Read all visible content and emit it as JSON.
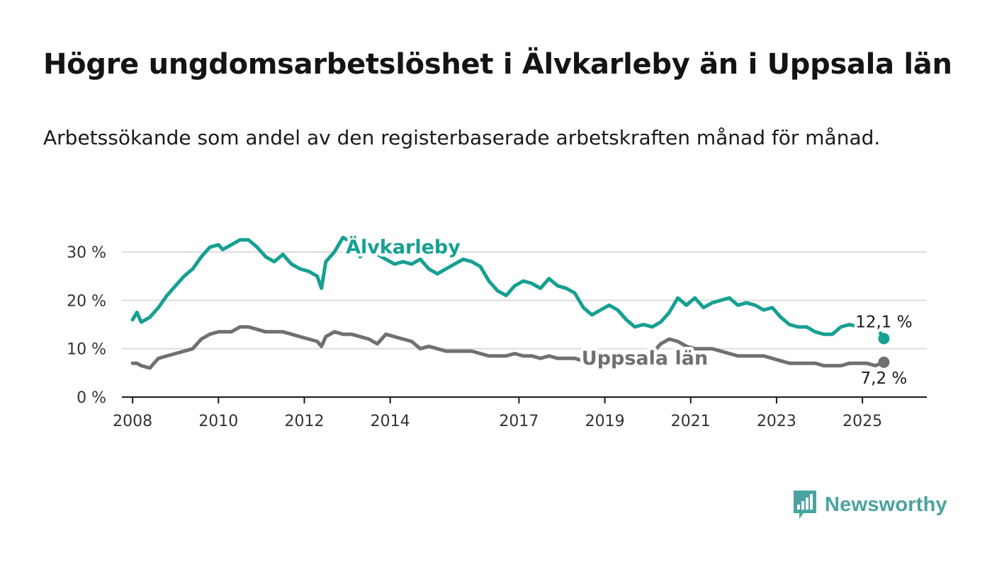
{
  "header": {
    "title": "Högre ungdomsarbetslöshet i Älvkarleby än i Uppsala län",
    "subtitle": "Arbetssökande som andel av den registerbaserade arbetskraften månad för månad."
  },
  "logo": {
    "text": "Newsworthy",
    "icon": "newsworthy-logo-icon",
    "color": "#4aa3a0"
  },
  "chart_data": {
    "type": "line",
    "title": "",
    "xlabel": "",
    "ylabel": "",
    "xlim": [
      2007.75,
      2026.5
    ],
    "ylim": [
      0,
      30
    ],
    "y_ticks": [
      0,
      10,
      20,
      30
    ],
    "y_tick_labels": [
      "0 %",
      "10 %",
      "20 %",
      "30 %"
    ],
    "x_ticks": [
      2008,
      2010,
      2012,
      2014,
      2017,
      2019,
      2021,
      2023,
      2025
    ],
    "x_tick_labels": [
      "2008",
      "2010",
      "2012",
      "2014",
      "2017",
      "2019",
      "2021",
      "2023",
      "2025"
    ],
    "grid": true,
    "series": [
      {
        "name": "Älvkarleby",
        "color": "#16a092",
        "end_label": "12,1 %",
        "x": [
          2008.0,
          2008.1,
          2008.2,
          2008.4,
          2008.6,
          2008.8,
          2009.0,
          2009.2,
          2009.4,
          2009.6,
          2009.8,
          2010.0,
          2010.1,
          2010.3,
          2010.5,
          2010.7,
          2010.9,
          2011.1,
          2011.3,
          2011.5,
          2011.7,
          2011.9,
          2012.1,
          2012.3,
          2012.4,
          2012.5,
          2012.7,
          2012.9,
          2013.1,
          2013.3,
          2013.5,
          2013.7,
          2013.9,
          2014.1,
          2014.3,
          2014.5,
          2014.7,
          2014.9,
          2015.1,
          2015.3,
          2015.5,
          2015.7,
          2015.9,
          2016.1,
          2016.3,
          2016.5,
          2016.7,
          2016.9,
          2017.1,
          2017.3,
          2017.5,
          2017.7,
          2017.9,
          2018.1,
          2018.3,
          2018.5,
          2018.7,
          2018.9,
          2019.1,
          2019.3,
          2019.5,
          2019.7,
          2019.9,
          2020.1,
          2020.3,
          2020.5,
          2020.7,
          2020.9,
          2021.1,
          2021.3,
          2021.5,
          2021.7,
          2021.9,
          2022.1,
          2022.3,
          2022.5,
          2022.7,
          2022.9,
          2023.1,
          2023.3,
          2023.5,
          2023.7,
          2023.9,
          2024.1,
          2024.3,
          2024.5,
          2024.7,
          2024.9,
          2025.1,
          2025.3,
          2025.5
        ],
        "y": [
          16.0,
          17.5,
          15.5,
          16.5,
          18.5,
          21.0,
          23.0,
          25.0,
          26.5,
          29.0,
          31.0,
          31.5,
          30.5,
          31.5,
          32.5,
          32.5,
          31.0,
          29.0,
          28.0,
          29.5,
          27.5,
          26.5,
          26.0,
          25.0,
          22.5,
          28.0,
          30.0,
          33.0,
          32.0,
          29.0,
          31.0,
          29.5,
          28.5,
          27.5,
          28.0,
          27.5,
          28.5,
          26.5,
          25.5,
          26.5,
          27.5,
          28.5,
          28.0,
          27.0,
          24.0,
          22.0,
          21.0,
          23.0,
          24.0,
          23.5,
          22.5,
          24.5,
          23.0,
          22.5,
          21.5,
          18.5,
          17.0,
          18.0,
          19.0,
          18.0,
          16.0,
          14.5,
          15.0,
          14.5,
          15.5,
          17.5,
          20.5,
          19.0,
          20.5,
          18.5,
          19.5,
          20.0,
          20.5,
          19.0,
          19.5,
          19.0,
          18.0,
          18.5,
          16.5,
          15.0,
          14.5,
          14.5,
          13.5,
          13.0,
          13.0,
          14.5,
          15.0,
          14.5,
          14.5,
          15.0,
          12.1
        ]
      },
      {
        "name": "Uppsala län",
        "color": "#707070",
        "end_label": "7,2 %",
        "x": [
          2008.0,
          2008.1,
          2008.2,
          2008.4,
          2008.6,
          2008.8,
          2009.0,
          2009.2,
          2009.4,
          2009.6,
          2009.8,
          2010.0,
          2010.1,
          2010.3,
          2010.5,
          2010.7,
          2010.9,
          2011.1,
          2011.3,
          2011.5,
          2011.7,
          2011.9,
          2012.1,
          2012.3,
          2012.4,
          2012.5,
          2012.7,
          2012.9,
          2013.1,
          2013.3,
          2013.5,
          2013.7,
          2013.9,
          2014.1,
          2014.3,
          2014.5,
          2014.7,
          2014.9,
          2015.1,
          2015.3,
          2015.5,
          2015.7,
          2015.9,
          2016.1,
          2016.3,
          2016.5,
          2016.7,
          2016.9,
          2017.1,
          2017.3,
          2017.5,
          2017.7,
          2017.9,
          2018.1,
          2018.3,
          2018.5,
          2018.7,
          2018.9,
          2019.1,
          2019.3,
          2019.5,
          2019.7,
          2019.9,
          2020.1,
          2020.3,
          2020.5,
          2020.7,
          2020.9,
          2021.1,
          2021.3,
          2021.5,
          2021.7,
          2021.9,
          2022.1,
          2022.3,
          2022.5,
          2022.7,
          2022.9,
          2023.1,
          2023.3,
          2023.5,
          2023.7,
          2023.9,
          2024.1,
          2024.3,
          2024.5,
          2024.7,
          2024.9,
          2025.1,
          2025.3,
          2025.5
        ],
        "y": [
          7.0,
          7.0,
          6.5,
          6.0,
          8.0,
          8.5,
          9.0,
          9.5,
          10.0,
          12.0,
          13.0,
          13.5,
          13.5,
          13.5,
          14.5,
          14.5,
          14.0,
          13.5,
          13.5,
          13.5,
          13.0,
          12.5,
          12.0,
          11.5,
          10.5,
          12.5,
          13.5,
          13.0,
          13.0,
          12.5,
          12.0,
          11.0,
          13.0,
          12.5,
          12.0,
          11.5,
          10.0,
          10.5,
          10.0,
          9.5,
          9.5,
          9.5,
          9.5,
          9.0,
          8.5,
          8.5,
          8.5,
          9.0,
          8.5,
          8.5,
          8.0,
          8.5,
          8.0,
          8.0,
          8.0,
          7.5,
          7.0,
          7.5,
          7.5,
          8.0,
          7.5,
          8.0,
          8.0,
          9.0,
          11.0,
          12.0,
          11.5,
          10.5,
          10.0,
          10.0,
          10.0,
          9.5,
          9.0,
          8.5,
          8.5,
          8.5,
          8.5,
          8.0,
          7.5,
          7.0,
          7.0,
          7.0,
          7.0,
          6.5,
          6.5,
          6.5,
          7.0,
          7.0,
          7.0,
          6.5,
          7.2
        ]
      }
    ]
  }
}
